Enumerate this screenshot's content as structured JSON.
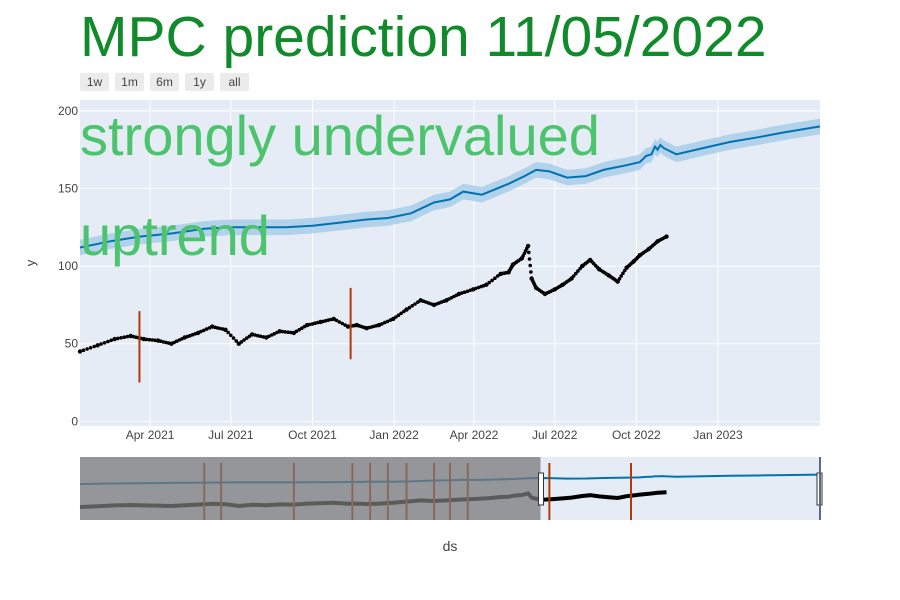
{
  "title": "MPC prediction 11/05/2022",
  "annotations": [
    "strongly undervalued",
    "uptrend"
  ],
  "range_buttons": [
    "1w",
    "1m",
    "6m",
    "1y",
    "all"
  ],
  "colors": {
    "title": "#118a2b",
    "annotation": "#4cc36d",
    "forecast_line": "#0072b2",
    "forecast_band": "#a9cce8",
    "actual_points": "#000000",
    "changepoints": "#b23a08",
    "plot_bg": "#e5ecf6",
    "button_bg": "#ebebeb"
  },
  "chart_data": {
    "type": "line",
    "xlabel": "ds",
    "ylabel": "y",
    "xlim": [
      "2021-01-12",
      "2023-04-26"
    ],
    "ylim": [
      -3,
      207
    ],
    "x_ticks": [
      {
        "date": "2021-04-01",
        "label": "Apr 2021"
      },
      {
        "date": "2021-07-01",
        "label": "Jul 2021"
      },
      {
        "date": "2021-10-01",
        "label": "Oct 2021"
      },
      {
        "date": "2022-01-01",
        "label": "Jan 2022"
      },
      {
        "date": "2022-04-01",
        "label": "Apr 2022"
      },
      {
        "date": "2022-07-01",
        "label": "Jul 2022"
      },
      {
        "date": "2022-10-01",
        "label": "Oct 2022"
      },
      {
        "date": "2023-01-01",
        "label": "Jan 2023"
      }
    ],
    "y_ticks": [
      0,
      50,
      100,
      150,
      200
    ],
    "grid": true,
    "series": [
      {
        "kind": "forecast",
        "x": [
          "2021-01-12",
          "2021-02-15",
          "2021-03-20",
          "2021-04-25",
          "2021-06-01",
          "2021-07-01",
          "2021-08-01",
          "2021-09-01",
          "2021-10-01",
          "2021-11-01",
          "2021-12-01",
          "2021-12-25",
          "2022-01-20",
          "2022-02-15",
          "2022-03-05",
          "2022-03-20",
          "2022-04-10",
          "2022-05-10",
          "2022-05-28",
          "2022-06-10",
          "2022-06-25",
          "2022-07-15",
          "2022-08-05",
          "2022-08-25",
          "2022-09-20",
          "2022-10-05",
          "2022-10-12",
          "2022-10-18",
          "2022-10-22",
          "2022-10-25",
          "2022-10-28",
          "2022-11-01",
          "2022-11-15",
          "2022-12-15",
          "2023-01-15",
          "2023-02-15",
          "2023-03-15",
          "2023-04-26"
        ],
        "y": [
          112,
          116,
          119,
          121,
          124,
          125,
          125,
          125,
          126,
          128,
          130,
          131,
          134,
          141,
          143,
          148,
          146,
          153,
          158,
          162,
          161,
          157,
          158,
          162,
          165,
          167,
          171,
          172,
          177,
          175,
          178,
          176,
          172,
          176,
          180,
          183,
          186,
          190
        ],
        "band": 5
      },
      {
        "kind": "actual",
        "x": [
          "2021-01-12",
          "2021-02-01",
          "2021-02-20",
          "2021-03-10",
          "2021-03-25",
          "2021-04-10",
          "2021-04-25",
          "2021-05-10",
          "2021-05-25",
          "2021-06-10",
          "2021-06-25",
          "2021-07-10",
          "2021-07-25",
          "2021-08-10",
          "2021-08-25",
          "2021-09-10",
          "2021-09-25",
          "2021-10-10",
          "2021-10-25",
          "2021-11-10",
          "2021-11-20",
          "2021-12-01",
          "2021-12-15",
          "2021-12-31",
          "2022-01-15",
          "2022-01-31",
          "2022-02-15",
          "2022-03-01",
          "2022-03-15",
          "2022-03-31",
          "2022-04-15",
          "2022-05-01",
          "2022-05-10",
          "2022-05-15",
          "2022-05-25",
          "2022-06-01",
          "2022-06-05",
          "2022-06-10",
          "2022-06-20",
          "2022-07-01",
          "2022-07-10",
          "2022-07-20",
          "2022-08-01",
          "2022-08-10",
          "2022-08-20",
          "2022-08-31",
          "2022-09-10",
          "2022-09-20",
          "2022-09-28",
          "2022-10-05",
          "2022-10-15",
          "2022-10-25",
          "2022-11-04"
        ],
        "y": [
          45,
          49,
          53,
          55,
          53,
          52,
          50,
          54,
          57,
          61,
          59,
          50,
          56,
          54,
          58,
          57,
          62,
          64,
          66,
          61,
          62,
          60,
          62,
          66,
          72,
          78,
          75,
          78,
          82,
          85,
          88,
          95,
          96,
          101,
          105,
          113,
          92,
          86,
          82,
          85,
          88,
          92,
          100,
          104,
          98,
          94,
          90,
          99,
          103,
          107,
          111,
          116,
          119
        ]
      }
    ],
    "changepoints": [
      {
        "date": "2021-03-20",
        "low": 25,
        "high": 71
      },
      {
        "date": "2021-11-13",
        "low": 40,
        "high": 86
      }
    ]
  },
  "range_slider": {
    "selected_from": "2022-06-15",
    "selected_to": "2023-04-26",
    "changepoint_dates": [
      "2021-06-01",
      "2021-06-20",
      "2021-09-10",
      "2021-11-15",
      "2021-12-05",
      "2021-12-25",
      "2022-01-15",
      "2022-02-15",
      "2022-03-05",
      "2022-03-25",
      "2022-06-25",
      "2022-09-25"
    ]
  }
}
